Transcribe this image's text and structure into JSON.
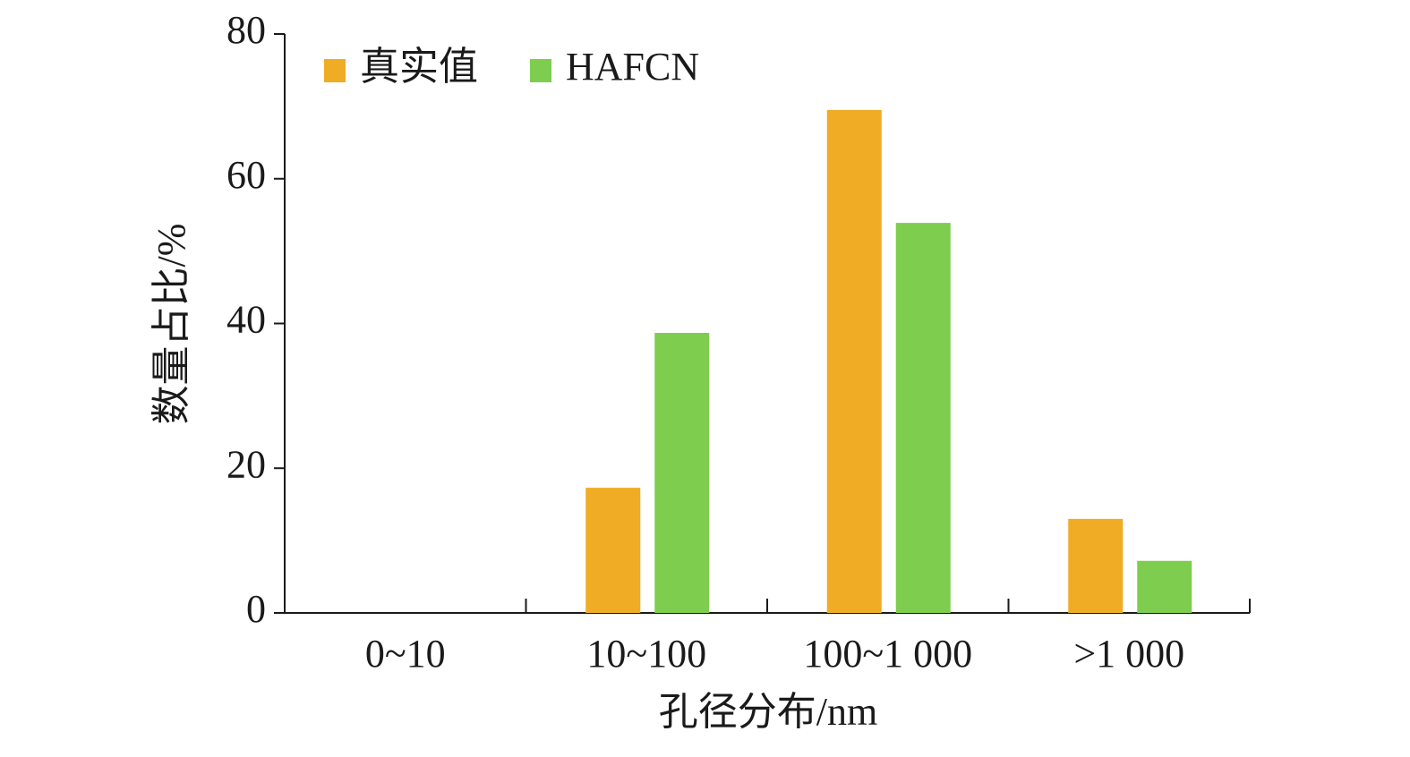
{
  "chart_data": {
    "type": "bar",
    "x_label": "孔径分布/nm",
    "y_label": "数量占比/%",
    "categories": [
      "0~10",
      "10~100",
      "100~1 000",
      ">1 000"
    ],
    "series": [
      {
        "name": "真实值",
        "color": "#f0ac24",
        "values": [
          0,
          17.3,
          69.5,
          13.0
        ]
      },
      {
        "name": "HAFCN",
        "color": "#7ecd4f",
        "values": [
          0,
          38.7,
          53.9,
          7.2
        ]
      }
    ],
    "ylim": [
      0,
      80
    ],
    "yticks": [
      0,
      20,
      40,
      60,
      80
    ],
    "legend": "upper left"
  }
}
